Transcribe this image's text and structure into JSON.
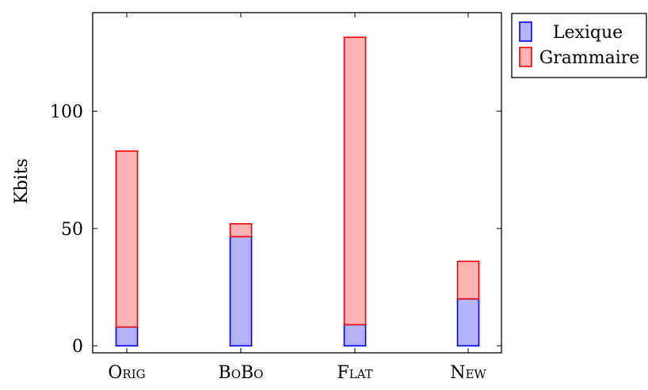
{
  "chart_data": {
    "type": "bar",
    "stacked": true,
    "categories": [
      "Orig",
      "BoBo",
      "Flat",
      "New"
    ],
    "series": [
      {
        "name": "Lexique",
        "values": [
          8,
          46.5,
          9,
          20
        ],
        "fill": "#b3b3ff",
        "stroke": "#0000ff"
      },
      {
        "name": "Grammaire",
        "values": [
          75,
          5.5,
          122.5,
          16
        ],
        "fill": "#ffb3b3",
        "stroke": "#ff0000"
      }
    ],
    "ylabel": "Kbits",
    "ylim": [
      -3,
      142
    ],
    "yticks": [
      0,
      50,
      100
    ],
    "grid": false,
    "legend_position": "outside-top-right"
  }
}
